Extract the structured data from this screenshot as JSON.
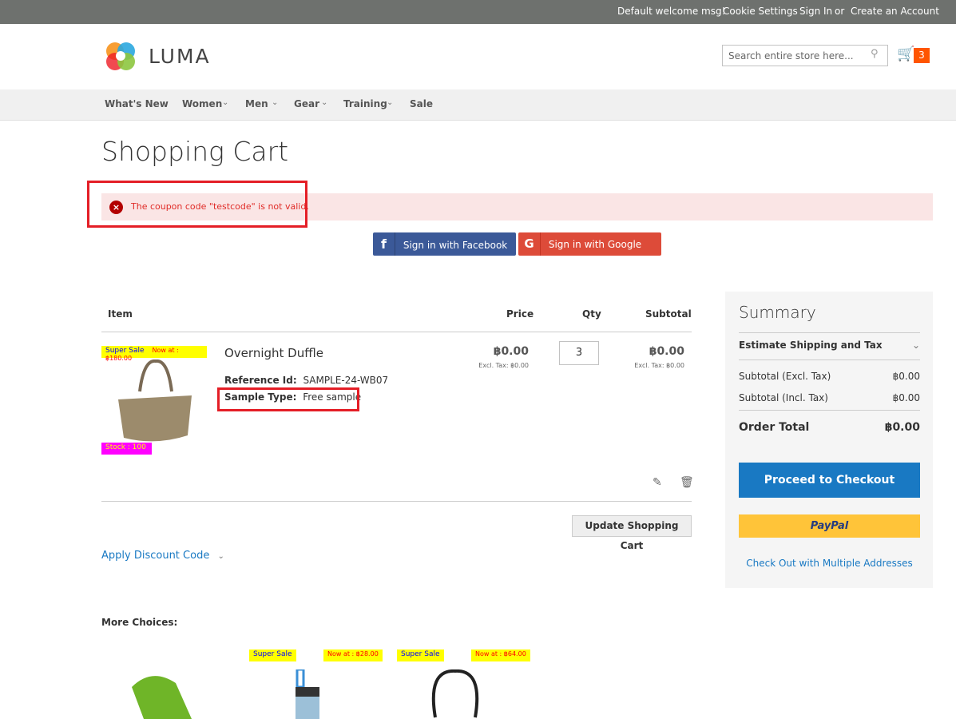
{
  "topbar": {
    "welcome": "Default welcome msg!",
    "cookie": "Cookie Settings",
    "signin": "Sign In",
    "or": "or",
    "create": "Create an Account"
  },
  "header": {
    "logo": "LUMA",
    "search_placeholder": "Search entire store here...",
    "cart_count": "3"
  },
  "nav": [
    "What's New",
    "Women",
    "Men",
    "Gear",
    "Training",
    "Sale"
  ],
  "page_title": "Shopping Cart",
  "error_message": "The coupon code \"testcode\" is not valid.",
  "social": {
    "facebook": "Sign in with Facebook",
    "google": "Sign in with Google",
    "facebook_color": "#3b5998",
    "google_color": "#dd4b39"
  },
  "cart": {
    "headers": {
      "item": "Item",
      "price": "Price",
      "qty": "Qty",
      "subtotal": "Subtotal"
    },
    "items": [
      {
        "name": "Overnight Duffle",
        "sale_badge": "Super Sale",
        "now_at": "Now at : ฿180.00",
        "stock": "Stock : 100",
        "ref_label": "Reference Id:",
        "ref_value": "SAMPLE-24-WB07",
        "type_label": "Sample Type:",
        "type_value": "Free sample",
        "price": "฿0.00",
        "price_excl": "Excl. Tax: ฿0.00",
        "qty": "3",
        "subtotal": "฿0.00",
        "subtotal_excl": "Excl. Tax: ฿0.00"
      }
    ],
    "update_button": "Update Shopping Cart",
    "discount": "Apply Discount Code"
  },
  "summary": {
    "title": "Summary",
    "estimate": "Estimate Shipping and Tax",
    "rows": [
      {
        "label": "Subtotal (Excl. Tax)",
        "value": "฿0.00"
      },
      {
        "label": "Subtotal (Incl. Tax)",
        "value": "฿0.00"
      }
    ],
    "total_label": "Order Total",
    "total_value": "฿0.00",
    "checkout": "Proceed to Checkout",
    "paypal": "PayPal",
    "multi": "Check Out with Multiple Addresses"
  },
  "more": {
    "title": "More Choices:",
    "items": [
      {
        "sale": "Super Sale",
        "now": "Now at : ฿28.00"
      },
      {
        "sale": "Super Sale",
        "now": "Now at : ฿64.00"
      }
    ]
  }
}
